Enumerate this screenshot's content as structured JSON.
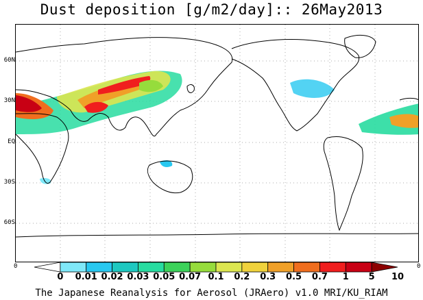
{
  "title": "Dust deposition [g/m2/day]:: 26May2013",
  "lat_labels": [
    "60N",
    "30N",
    "EQ",
    "30S",
    "60S"
  ],
  "axis_zero_left": "0",
  "axis_zero_right": "0",
  "colorbar": {
    "levels": [
      "0",
      "0.01",
      "0.02",
      "0.03",
      "0.05",
      "0.07",
      "0.1",
      "0.2",
      "0.3",
      "0.5",
      "0.7",
      "1",
      "5",
      "10"
    ],
    "colors": [
      "#ffffff",
      "#7fe8f8",
      "#28c8f0",
      "#1ec8c0",
      "#28dca0",
      "#3cd25a",
      "#96dc3c",
      "#dce650",
      "#f0d23c",
      "#f0a028",
      "#f06e1e",
      "#f01e1e",
      "#c80014",
      "#8c0000"
    ]
  },
  "footer": "The Japanese Reanalysis for Aerosol (JRAero) v1.0 MRI/KU_RIAM"
}
